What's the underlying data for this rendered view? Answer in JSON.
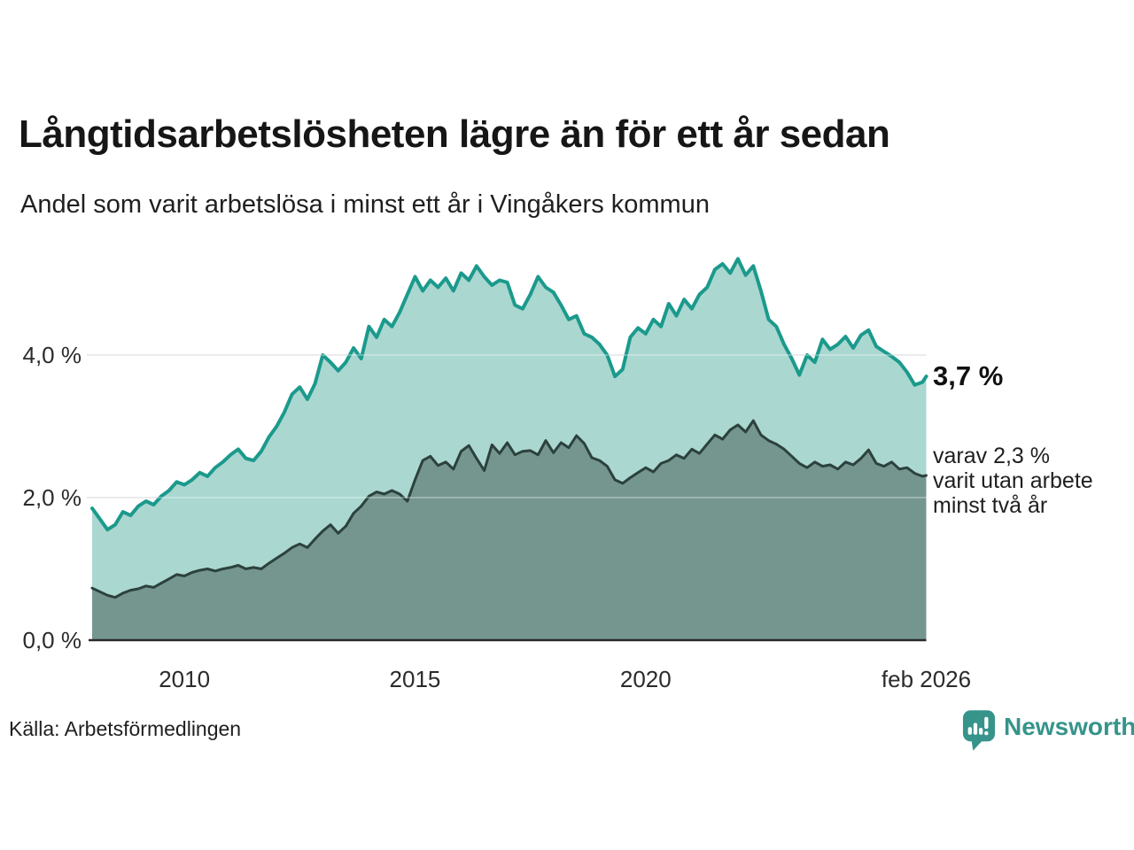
{
  "header": {
    "title": "Långtidsarbetslösheten lägre än för ett år sedan",
    "subtitle": "Andel som varit arbetslösa i minst ett år i Vingåkers kommun"
  },
  "annotations": {
    "latest_total": "3,7 %",
    "sub_lines": [
      "varav 2,3 %",
      "varit utan arbete",
      "minst två år"
    ]
  },
  "footer": {
    "source": "Källa: Arbetsförmedlingen",
    "brand": "Newsworthy"
  },
  "colors": {
    "background": "#ffffff",
    "grid": "#e2e2e2",
    "axis": "#2a2a2a",
    "brand_teal": "#36948b"
  },
  "chart_data": {
    "type": "area",
    "title": "Långtidsarbetslösheten lägre än för ett år sedan",
    "subtitle": "Andel som varit arbetslösa i minst ett år i Vingåkers kommun",
    "xlabel": "",
    "ylabel": "",
    "x_unit": "decimal_year",
    "ylim": [
      0,
      5.6
    ],
    "xlim": [
      2008,
      2026.083
    ],
    "grid": true,
    "legend_position": "right-annotations",
    "yticks": [
      {
        "value": 0,
        "label": "0,0 %"
      },
      {
        "value": 2,
        "label": "2,0 %"
      },
      {
        "value": 4,
        "label": "4,0 %"
      }
    ],
    "xticks": [
      {
        "value": 2010,
        "label": "2010"
      },
      {
        "value": 2015,
        "label": "2015"
      },
      {
        "value": 2020,
        "label": "2020"
      },
      {
        "value": 2026.083,
        "label": "feb 2026"
      }
    ],
    "x": [
      2008,
      2008.167,
      2008.333,
      2008.5,
      2008.667,
      2008.833,
      2009,
      2009.167,
      2009.333,
      2009.5,
      2009.667,
      2009.833,
      2010,
      2010.167,
      2010.333,
      2010.5,
      2010.667,
      2010.833,
      2011,
      2011.167,
      2011.333,
      2011.5,
      2011.667,
      2011.833,
      2012,
      2012.167,
      2012.333,
      2012.5,
      2012.667,
      2012.833,
      2013,
      2013.167,
      2013.333,
      2013.5,
      2013.667,
      2013.833,
      2014,
      2014.167,
      2014.333,
      2014.5,
      2014.667,
      2014.833,
      2015,
      2015.167,
      2015.333,
      2015.5,
      2015.667,
      2015.833,
      2016,
      2016.167,
      2016.333,
      2016.5,
      2016.667,
      2016.833,
      2017,
      2017.167,
      2017.333,
      2017.5,
      2017.667,
      2017.833,
      2018,
      2018.167,
      2018.333,
      2018.5,
      2018.667,
      2018.833,
      2019,
      2019.167,
      2019.333,
      2019.5,
      2019.667,
      2019.833,
      2020,
      2020.167,
      2020.333,
      2020.5,
      2020.667,
      2020.833,
      2021,
      2021.167,
      2021.333,
      2021.5,
      2021.667,
      2021.833,
      2022,
      2022.167,
      2022.333,
      2022.5,
      2022.667,
      2022.833,
      2023,
      2023.167,
      2023.333,
      2023.5,
      2023.667,
      2023.833,
      2024,
      2024.167,
      2024.333,
      2024.5,
      2024.667,
      2024.833,
      2025,
      2025.167,
      2025.333,
      2025.5,
      2025.667,
      2025.833,
      2026,
      2026.083
    ],
    "series": [
      {
        "name": "Andel arbetslösa minst ett år",
        "color": "#1b9a8c",
        "fill": "#aad7d0",
        "line_width": 4,
        "end_label": "3,7 %",
        "values": [
          1.85,
          1.7,
          1.55,
          1.62,
          1.8,
          1.75,
          1.88,
          1.95,
          1.9,
          2.02,
          2.1,
          2.22,
          2.18,
          2.25,
          2.35,
          2.3,
          2.42,
          2.5,
          2.6,
          2.68,
          2.55,
          2.52,
          2.65,
          2.85,
          3.0,
          3.2,
          3.45,
          3.55,
          3.38,
          3.6,
          4.0,
          3.9,
          3.78,
          3.9,
          4.1,
          3.95,
          4.4,
          4.25,
          4.5,
          4.4,
          4.6,
          4.85,
          5.1,
          4.9,
          5.05,
          4.95,
          5.08,
          4.9,
          5.15,
          5.05,
          5.25,
          5.1,
          4.98,
          5.05,
          5.02,
          4.7,
          4.65,
          4.85,
          5.1,
          4.95,
          4.88,
          4.7,
          4.5,
          4.55,
          4.3,
          4.25,
          4.15,
          4.0,
          3.7,
          3.8,
          4.25,
          4.38,
          4.3,
          4.5,
          4.4,
          4.72,
          4.55,
          4.78,
          4.65,
          4.85,
          4.95,
          5.2,
          5.28,
          5.15,
          5.35,
          5.12,
          5.25,
          4.9,
          4.5,
          4.4,
          4.15,
          3.95,
          3.72,
          4.0,
          3.9,
          4.22,
          4.08,
          4.15,
          4.26,
          4.1,
          4.28,
          4.35,
          4.12,
          4.05,
          3.98,
          3.9,
          3.76,
          3.58,
          3.62,
          3.7
        ]
      },
      {
        "name": "varav arbetslösa minst två år",
        "color": "#2c413d",
        "fill": "#74968f",
        "line_width": 3,
        "end_label": "varav 2,3 % varit utan arbete minst två år",
        "values": [
          0.73,
          0.68,
          0.63,
          0.6,
          0.66,
          0.7,
          0.72,
          0.76,
          0.74,
          0.8,
          0.86,
          0.92,
          0.9,
          0.95,
          0.98,
          1.0,
          0.97,
          1.0,
          1.02,
          1.05,
          1.0,
          1.02,
          1.0,
          1.08,
          1.15,
          1.22,
          1.3,
          1.35,
          1.3,
          1.42,
          1.53,
          1.62,
          1.5,
          1.6,
          1.78,
          1.88,
          2.02,
          2.08,
          2.05,
          2.1,
          2.05,
          1.95,
          2.25,
          2.52,
          2.58,
          2.45,
          2.5,
          2.4,
          2.65,
          2.73,
          2.55,
          2.38,
          2.74,
          2.62,
          2.77,
          2.6,
          2.65,
          2.66,
          2.6,
          2.8,
          2.63,
          2.77,
          2.7,
          2.87,
          2.76,
          2.56,
          2.52,
          2.44,
          2.25,
          2.2,
          2.28,
          2.35,
          2.42,
          2.36,
          2.48,
          2.52,
          2.6,
          2.55,
          2.68,
          2.62,
          2.75,
          2.88,
          2.82,
          2.95,
          3.02,
          2.92,
          3.08,
          2.88,
          2.8,
          2.75,
          2.68,
          2.58,
          2.48,
          2.42,
          2.5,
          2.44,
          2.46,
          2.4,
          2.5,
          2.46,
          2.55,
          2.67,
          2.48,
          2.44,
          2.5,
          2.4,
          2.42,
          2.34,
          2.3,
          2.31
        ]
      }
    ]
  }
}
